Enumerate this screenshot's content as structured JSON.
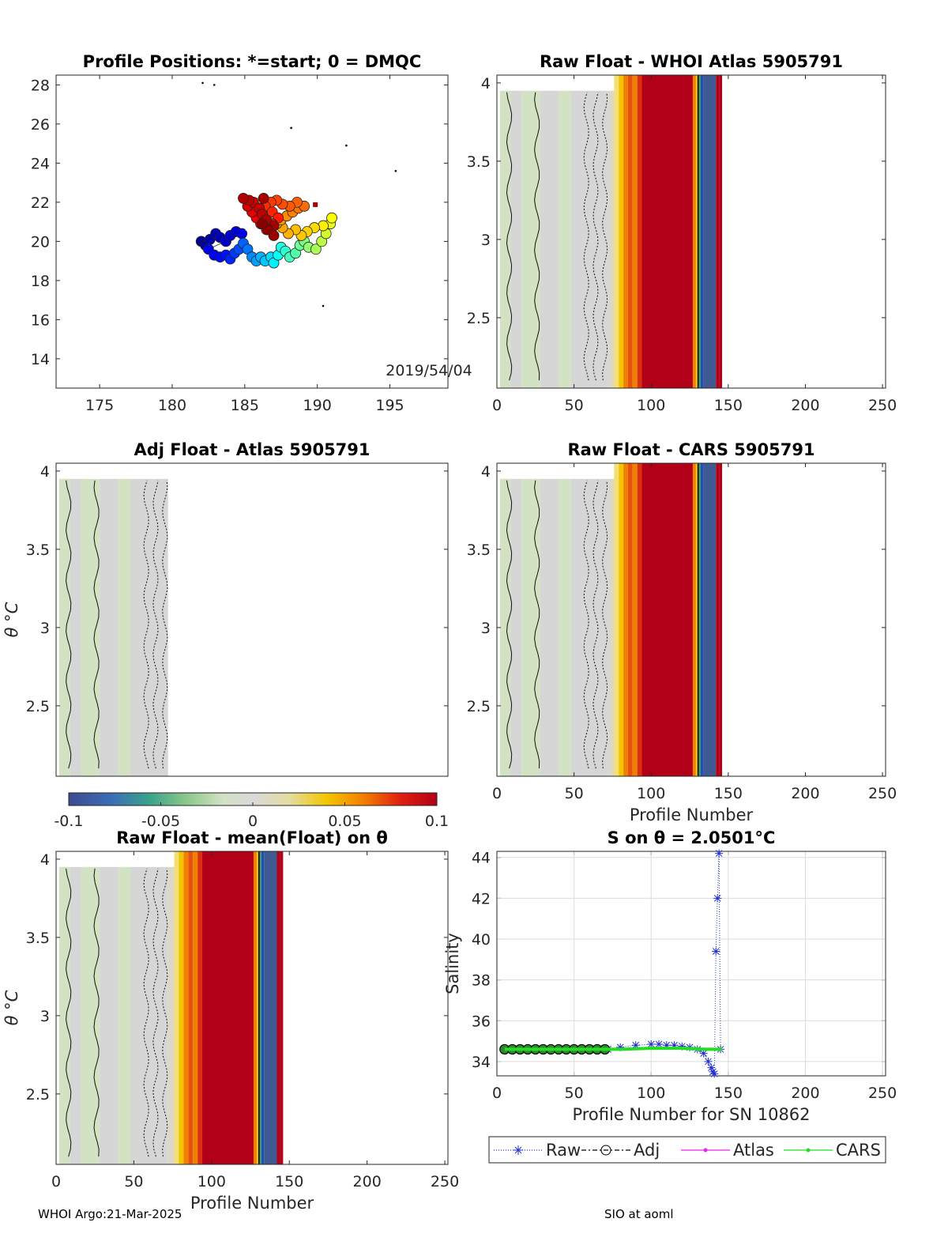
{
  "footer": {
    "left": "WHOI Argo:21-Mar-2025",
    "right": "SIO at aoml"
  },
  "colors": {
    "grey": "#d6d6d6",
    "lightgreen": "#d2e2c2",
    "yellow": "#f2c500",
    "orange": "#f08000",
    "red": "#b20018",
    "blue": "#3f5a92",
    "green": "#2ea05a"
  },
  "chart_data": [
    {
      "type": "scatter",
      "panel": "positions",
      "title": "Profile Positions: *=start; 0 = DMQC",
      "annotation": "2019/54/04",
      "xlim": [
        172,
        199
      ],
      "ylim": [
        12.5,
        28.5
      ],
      "xticks": [
        "175",
        "180",
        "185",
        "190",
        "195"
      ],
      "yticks": [
        "14",
        "16",
        "18",
        "20",
        "22",
        "24",
        "26",
        "28"
      ],
      "xticks_v": [
        175,
        180,
        185,
        190,
        195
      ],
      "yticks_v": [
        14,
        16,
        18,
        20,
        22,
        24,
        26,
        28
      ],
      "points": [
        [
          182.0,
          20.0,
          0.02
        ],
        [
          182.3,
          19.8,
          0.03
        ],
        [
          182.6,
          20.1,
          0.04
        ],
        [
          183.0,
          20.4,
          0.05
        ],
        [
          183.3,
          20.2,
          0.06
        ],
        [
          183.7,
          20.0,
          0.07
        ],
        [
          184.0,
          20.3,
          0.08
        ],
        [
          184.4,
          20.5,
          0.09
        ],
        [
          184.8,
          20.4,
          0.1
        ],
        [
          182.5,
          19.6,
          0.11
        ],
        [
          182.9,
          19.3,
          0.12
        ],
        [
          183.3,
          19.2,
          0.13
        ],
        [
          183.7,
          19.3,
          0.14
        ],
        [
          184.0,
          19.1,
          0.16
        ],
        [
          184.3,
          19.4,
          0.18
        ],
        [
          184.6,
          19.6,
          0.2
        ],
        [
          184.9,
          19.9,
          0.22
        ],
        [
          185.2,
          19.6,
          0.24
        ],
        [
          185.5,
          19.2,
          0.26
        ],
        [
          185.8,
          19.0,
          0.28
        ],
        [
          186.1,
          19.2,
          0.3
        ],
        [
          186.4,
          19.0,
          0.32
        ],
        [
          186.8,
          19.2,
          0.34
        ],
        [
          187.0,
          18.9,
          0.36
        ],
        [
          187.3,
          19.3,
          0.38
        ],
        [
          187.5,
          19.7,
          0.4
        ],
        [
          187.8,
          19.5,
          0.42
        ],
        [
          188.1,
          19.2,
          0.44
        ],
        [
          188.5,
          19.4,
          0.46
        ],
        [
          188.8,
          19.8,
          0.48
        ],
        [
          189.1,
          20.0,
          0.5
        ],
        [
          189.4,
          19.7,
          0.52
        ],
        [
          189.9,
          19.6,
          0.54
        ],
        [
          190.3,
          20.0,
          0.56
        ],
        [
          190.6,
          20.4,
          0.58
        ],
        [
          190.9,
          20.9,
          0.6
        ],
        [
          191.0,
          21.2,
          0.62
        ],
        [
          190.4,
          20.8,
          0.64
        ],
        [
          189.8,
          20.7,
          0.66
        ],
        [
          189.3,
          20.5,
          0.67
        ],
        [
          188.9,
          20.3,
          0.68
        ],
        [
          188.5,
          20.6,
          0.69
        ],
        [
          188.0,
          20.4,
          0.7
        ],
        [
          187.6,
          20.7,
          0.71
        ],
        [
          187.2,
          20.9,
          0.72
        ],
        [
          187.5,
          21.1,
          0.73
        ],
        [
          187.9,
          21.3,
          0.74
        ],
        [
          188.3,
          21.5,
          0.75
        ],
        [
          188.7,
          21.7,
          0.76
        ],
        [
          189.1,
          21.8,
          0.77
        ],
        [
          188.6,
          22.0,
          0.78
        ],
        [
          188.1,
          21.8,
          0.79
        ],
        [
          187.6,
          21.9,
          0.8
        ],
        [
          187.2,
          22.1,
          0.81
        ],
        [
          186.8,
          22.0,
          0.82
        ],
        [
          186.4,
          21.8,
          0.83
        ],
        [
          186.9,
          21.5,
          0.84
        ],
        [
          187.3,
          21.2,
          0.85
        ],
        [
          186.9,
          20.9,
          0.86
        ],
        [
          186.5,
          20.6,
          0.87
        ],
        [
          186.1,
          20.9,
          0.88
        ],
        [
          185.8,
          21.2,
          0.89
        ],
        [
          185.5,
          21.5,
          0.9
        ],
        [
          185.2,
          21.8,
          0.91
        ],
        [
          185.6,
          22.0,
          0.92
        ],
        [
          186.0,
          21.7,
          0.93
        ],
        [
          186.2,
          21.4,
          0.94
        ],
        [
          186.5,
          21.1,
          0.95
        ],
        [
          187.0,
          20.8,
          0.96
        ],
        [
          187.0,
          20.3,
          0.97
        ],
        [
          186.6,
          20.6,
          0.98
        ],
        [
          186.2,
          20.9,
          0.99
        ],
        [
          185.3,
          22.1,
          0.94
        ],
        [
          184.9,
          22.2,
          0.95
        ],
        [
          186.3,
          22.2,
          0.96
        ]
      ],
      "stragglers": [
        [
          182.1,
          28.1
        ],
        [
          182.9,
          28.0
        ],
        [
          188.2,
          25.8
        ],
        [
          192.0,
          24.9
        ],
        [
          195.4,
          23.6
        ],
        [
          190.4,
          16.7
        ]
      ]
    },
    {
      "type": "heatmap",
      "panel": "raw-atlas",
      "title": "Raw Float - WHOI Atlas  5905791",
      "xlim": [
        0,
        252
      ],
      "ylim": [
        2.05,
        4.05
      ],
      "xticks": [
        "0",
        "50",
        "100",
        "150",
        "200",
        "250"
      ],
      "yticks": [
        "2.5",
        "3",
        "3.5",
        "4"
      ],
      "xticks_v": [
        0,
        50,
        100,
        150,
        200,
        250
      ],
      "yticks_v": [
        2.5,
        3,
        3.5,
        4
      ],
      "xlabel": "",
      "ylabel": "",
      "profiles_to": 146
    },
    {
      "type": "heatmap",
      "panel": "adj-atlas",
      "title": "Adj Float - Atlas  5905791",
      "xlim": [
        0,
        252
      ],
      "ylim": [
        2.05,
        4.05
      ],
      "xticks": [],
      "yticks": [
        "2.5",
        "3",
        "3.5",
        "4"
      ],
      "yticks_v": [
        2.5,
        3,
        3.5,
        4
      ],
      "ylabel": "θ °C",
      "profiles_to": 72
    },
    {
      "type": "heatmap",
      "panel": "raw-cars",
      "title": "Raw Float - CARS  5905791",
      "xlim": [
        0,
        252
      ],
      "ylim": [
        2.05,
        4.05
      ],
      "xticks": [
        "0",
        "50",
        "100",
        "150",
        "200",
        "250"
      ],
      "yticks": [
        "2.5",
        "3",
        "3.5",
        "4"
      ],
      "xticks_v": [
        0,
        50,
        100,
        150,
        200,
        250
      ],
      "yticks_v": [
        2.5,
        3,
        3.5,
        4
      ],
      "xlabel": "Profile Number",
      "profiles_to": 146
    },
    {
      "type": "heatmap",
      "panel": "raw-mean",
      "title": "Raw Float - mean(Float) on θ",
      "xlim": [
        0,
        252
      ],
      "ylim": [
        2.05,
        4.05
      ],
      "xticks": [
        "0",
        "50",
        "100",
        "150",
        "200",
        "250"
      ],
      "yticks": [
        "2.5",
        "3",
        "3.5",
        "4"
      ],
      "xticks_v": [
        0,
        50,
        100,
        150,
        200,
        250
      ],
      "yticks_v": [
        2.5,
        3,
        3.5,
        4
      ],
      "xlabel": "Profile Number",
      "ylabel": "θ °C",
      "profiles_to": 146
    },
    {
      "type": "line",
      "panel": "salinity",
      "title": "S on θ = 2.0501°C",
      "xlim": [
        0,
        252
      ],
      "ylim": [
        33.3,
        44.3
      ],
      "xticks": [
        "0",
        "50",
        "100",
        "150",
        "200",
        "250"
      ],
      "yticks": [
        "34",
        "36",
        "38",
        "40",
        "42",
        "44"
      ],
      "xticks_v": [
        0,
        50,
        100,
        150,
        200,
        250
      ],
      "yticks_v": [
        34,
        36,
        38,
        40,
        42,
        44
      ],
      "xlabel": "Profile Number for SN 10862",
      "ylabel": "Salinity",
      "grid": true,
      "legend": {
        "placement": "bottom",
        "entries": [
          "Raw",
          "Adj",
          "Atlas",
          "CARS"
        ]
      },
      "series": [
        {
          "name": "Raw",
          "style": "blue-star-dotted",
          "x": [
            5,
            20,
            40,
            60,
            72,
            80,
            90,
            100,
            105,
            110,
            115,
            120,
            125,
            130,
            134,
            137,
            139,
            140,
            141,
            142,
            143,
            144,
            145
          ],
          "y": [
            34.6,
            34.6,
            34.6,
            34.6,
            34.6,
            34.7,
            34.8,
            34.85,
            34.85,
            34.8,
            34.8,
            34.75,
            34.7,
            34.6,
            34.4,
            34.0,
            33.7,
            33.5,
            33.4,
            39.4,
            42.0,
            44.2,
            34.6
          ]
        },
        {
          "name": "Adj",
          "style": "black-circle-dashdot",
          "x": [
            5,
            10,
            15,
            20,
            25,
            30,
            35,
            40,
            45,
            50,
            55,
            60,
            65,
            70
          ],
          "y": [
            34.6,
            34.6,
            34.6,
            34.6,
            34.6,
            34.6,
            34.6,
            34.6,
            34.6,
            34.6,
            34.6,
            34.6,
            34.6,
            34.6
          ]
        },
        {
          "name": "Atlas",
          "style": "magenta-dot-solid",
          "x": [],
          "y": []
        },
        {
          "name": "CARS",
          "style": "green-dot-solid",
          "x": [
            5,
            30,
            60,
            80,
            100,
            120,
            135,
            146
          ],
          "y": [
            34.6,
            34.6,
            34.6,
            34.6,
            34.65,
            34.65,
            34.6,
            34.6
          ]
        }
      ]
    },
    {
      "type": "colorbar",
      "panel": "colorbar",
      "range": [
        -0.1,
        0.1
      ],
      "ticks": [
        "-0.1",
        "-0.05",
        "0",
        "0.05",
        "0.1"
      ],
      "ticks_v": [
        -0.1,
        -0.05,
        0,
        0.05,
        0.1
      ]
    }
  ]
}
